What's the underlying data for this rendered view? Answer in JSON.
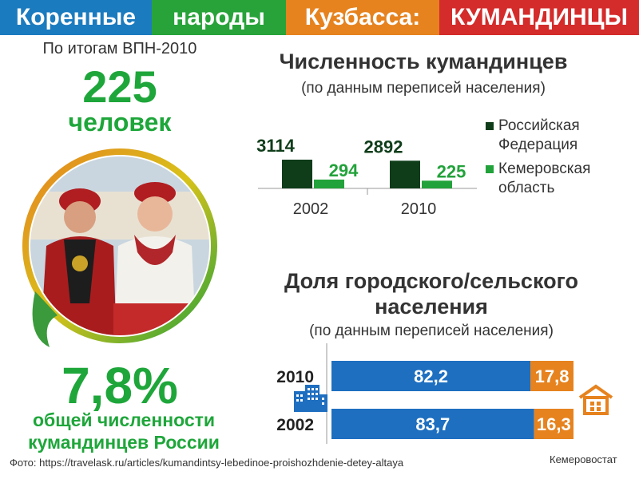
{
  "header": {
    "segments": [
      "Коренные",
      "народы",
      "Кузбасса:",
      "КУМАНДИНЦЫ"
    ],
    "colors": [
      "#1b7bbf",
      "#28a33a",
      "#e6831f",
      "#d42b2b"
    ]
  },
  "left": {
    "census_label": "По итогам ВПН-2010",
    "population": "225",
    "population_unit": "человек",
    "share": "7,8%",
    "share_caption_line1": "общей численности",
    "share_caption_line2": "кумандинцев  России",
    "photo_icon": "photo-two-women-folk-costume"
  },
  "footer": {
    "photo_credit": "Фото: https://travelask.ru/articles/kumandintsy-lebedinoe-proishozhdenie-detey-altaya",
    "source": "Кемеровостат"
  },
  "chart_data": [
    {
      "type": "bar",
      "title": "Численность кумандинцев",
      "subtitle": "(по данным переписей населения)",
      "categories": [
        "2002",
        "2010"
      ],
      "series": [
        {
          "name": "Российская Федерация",
          "values": [
            3114,
            2892
          ],
          "color": "#0f3d1a"
        },
        {
          "name": "Кемеровская область",
          "values": [
            294,
            225
          ],
          "color": "#22a23a"
        }
      ],
      "value_labels": [
        [
          "3114",
          "294"
        ],
        [
          "2892",
          "225"
        ]
      ],
      "legend": "right"
    },
    {
      "type": "bar",
      "orientation": "horizontal-stacked",
      "title_line1": "Доля городского/сельского",
      "title_line2": "населения",
      "subtitle": "(по данным переписей населения)",
      "categories": [
        "2010",
        "2002"
      ],
      "series": [
        {
          "values": [
            82.2,
            83.7
          ],
          "labels": [
            "82,2",
            "83,7"
          ],
          "color": "#1e6fc0",
          "icon": "city-buildings-icon"
        },
        {
          "values": [
            17.8,
            16.3
          ],
          "labels": [
            "17,8",
            "16,3"
          ],
          "color": "#e6831f",
          "icon": "house-icon"
        }
      ],
      "xlim": [
        0,
        100
      ]
    }
  ]
}
